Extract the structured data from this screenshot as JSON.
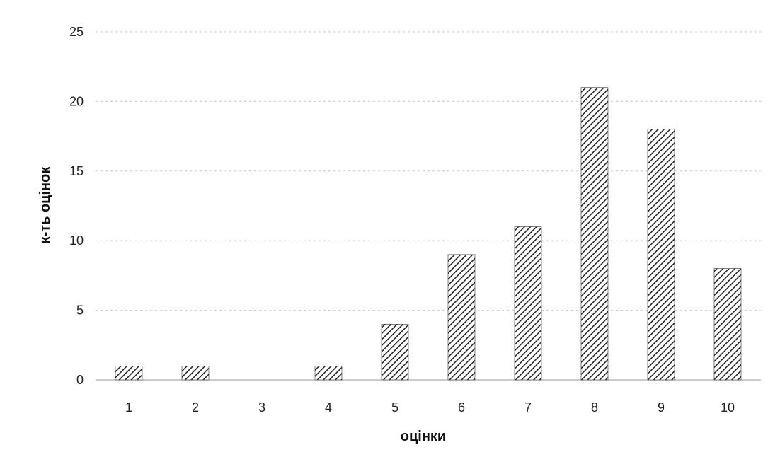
{
  "chart_data": {
    "type": "bar",
    "categories": [
      "1",
      "2",
      "3",
      "4",
      "5",
      "6",
      "7",
      "8",
      "9",
      "10"
    ],
    "values": [
      1,
      1,
      0,
      1,
      4,
      9,
      11,
      21,
      18,
      8
    ],
    "xlabel": "оцінки",
    "ylabel": "к-ть оцінок",
    "ylim": [
      0,
      25
    ],
    "yticks": [
      0,
      5,
      10,
      15,
      20,
      25
    ],
    "grid": true,
    "legend": "none",
    "bar_fill": "diagonal-hatch",
    "colors": {
      "bar": "#222222",
      "grid": "#c8c8c8",
      "text": "#222222"
    }
  }
}
